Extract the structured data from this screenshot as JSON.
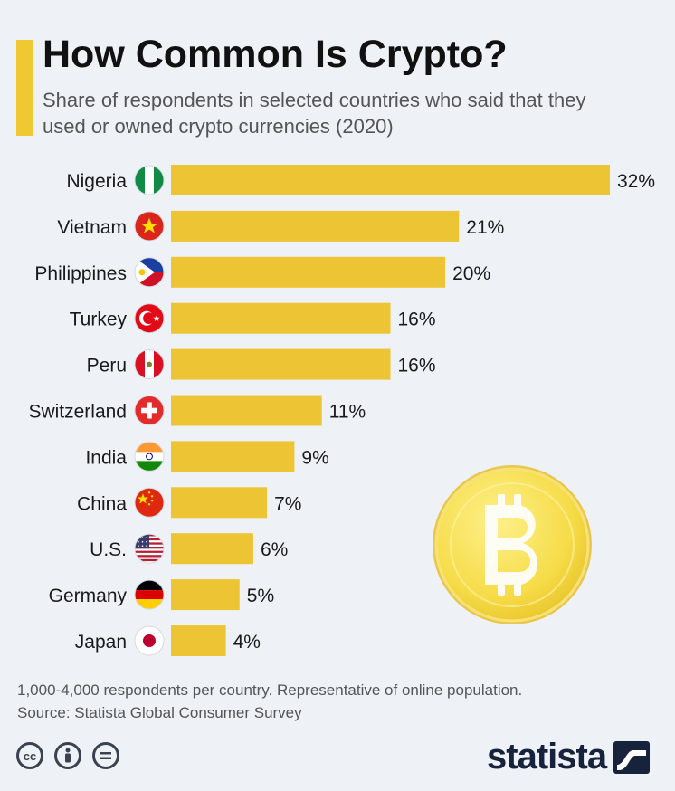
{
  "header": {
    "title": "How Common Is Crypto?",
    "subtitle": "Share of respondents in selected countries who said that they used or owned crypto currencies (2020)"
  },
  "chart_data": {
    "type": "bar",
    "orientation": "horizontal",
    "categories": [
      "Nigeria",
      "Vietnam",
      "Philippines",
      "Turkey",
      "Peru",
      "Switzerland",
      "India",
      "China",
      "U.S.",
      "Germany",
      "Japan"
    ],
    "values": [
      32,
      21,
      20,
      16,
      16,
      11,
      9,
      7,
      6,
      5,
      4
    ],
    "value_labels": [
      "32%",
      "21%",
      "20%",
      "16%",
      "16%",
      "11%",
      "9%",
      "7%",
      "6%",
      "5%",
      "4%"
    ],
    "flags": [
      "nigeria-flag-icon",
      "vietnam-flag-icon",
      "philippines-flag-icon",
      "turkey-flag-icon",
      "peru-flag-icon",
      "switzerland-flag-icon",
      "india-flag-icon",
      "china-flag-icon",
      "us-flag-icon",
      "germany-flag-icon",
      "japan-flag-icon"
    ],
    "unit": "%",
    "xlim": [
      0,
      32
    ],
    "bar_color": "#edc433",
    "grid": false,
    "legend": "none"
  },
  "footer": {
    "note": "1,000-4,000 respondents per country. Representative of online population.",
    "source": "Source: Statista Global Consumer Survey",
    "brand": "statista",
    "license_icons": [
      "cc-icon",
      "attribution-icon",
      "no-derivatives-icon"
    ]
  },
  "colors": {
    "accent": "#f0c832",
    "bar": "#edc433",
    "background": "#eef2f6",
    "brand": "#17233d"
  },
  "decoration": {
    "coin_icon": "bitcoin-coin-icon"
  }
}
